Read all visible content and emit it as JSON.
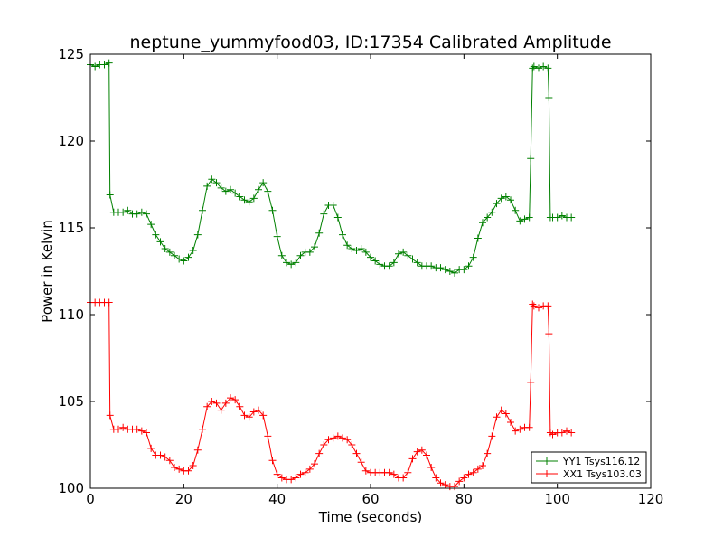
{
  "chart_data": {
    "type": "line",
    "title": "neptune_yummyfood03, ID:17354 Calibrated Amplitude",
    "xlabel": "Time (seconds)",
    "ylabel": "Power in Kelvin",
    "xlim": [
      0,
      120
    ],
    "ylim": [
      100,
      125
    ],
    "xticks": [
      "0",
      "20",
      "40",
      "60",
      "80",
      "100",
      "120"
    ],
    "yticks": [
      "100",
      "105",
      "110",
      "115",
      "120",
      "125"
    ],
    "grid": false,
    "legend_position": "bottom-right",
    "marker": "+",
    "series": [
      {
        "name": "YY1 Tsys116.12",
        "color": "#008000",
        "x": [
          0,
          1,
          2,
          3,
          4,
          4.2,
          5,
          6,
          7,
          8,
          9,
          10,
          11,
          12,
          13,
          14,
          15,
          16,
          17,
          18,
          19,
          20,
          21,
          22,
          23,
          24,
          25,
          26,
          27,
          28,
          29,
          30,
          31,
          32,
          33,
          34,
          35,
          36,
          37,
          38,
          39,
          40,
          41,
          42,
          43,
          44,
          45,
          46,
          47,
          48,
          49,
          50,
          51,
          52,
          53,
          54,
          55,
          56,
          57,
          58,
          59,
          60,
          61,
          62,
          63,
          64,
          65,
          66,
          67,
          68,
          69,
          70,
          71,
          72,
          73,
          74,
          75,
          76,
          77,
          78,
          79,
          80,
          81,
          82,
          83,
          84,
          85,
          86,
          87,
          88,
          89,
          90,
          91,
          92,
          93,
          94,
          94.3,
          94.7,
          95,
          96,
          97,
          98,
          98.2,
          98.5,
          99,
          100,
          101,
          102,
          103
        ],
        "y": [
          124.4,
          124.3,
          124.4,
          124.4,
          124.5,
          116.9,
          115.9,
          115.9,
          115.9,
          116.0,
          115.8,
          115.8,
          115.9,
          115.8,
          115.2,
          114.6,
          114.2,
          113.8,
          113.6,
          113.4,
          113.2,
          113.1,
          113.3,
          113.7,
          114.6,
          116.0,
          117.4,
          117.8,
          117.6,
          117.3,
          117.1,
          117.2,
          117.0,
          116.8,
          116.6,
          116.5,
          116.7,
          117.2,
          117.6,
          117.1,
          116.0,
          114.5,
          113.4,
          113.0,
          112.9,
          113.0,
          113.4,
          113.6,
          113.6,
          113.9,
          114.7,
          115.8,
          116.3,
          116.3,
          115.6,
          114.6,
          114.0,
          113.8,
          113.7,
          113.8,
          113.6,
          113.3,
          113.1,
          112.9,
          112.8,
          112.8,
          113.0,
          113.5,
          113.6,
          113.4,
          113.2,
          113.0,
          112.8,
          112.8,
          112.8,
          112.7,
          112.7,
          112.6,
          112.5,
          112.4,
          112.6,
          112.6,
          112.8,
          113.3,
          114.4,
          115.3,
          115.6,
          115.9,
          116.4,
          116.7,
          116.8,
          116.6,
          116.0,
          115.4,
          115.5,
          115.6,
          119.0,
          124.2,
          124.3,
          124.2,
          124.3,
          124.2,
          122.5,
          115.6,
          115.6,
          115.6,
          115.7,
          115.6,
          115.6
        ]
      },
      {
        "name": "XX1 Tsys103.03",
        "color": "#ff0000",
        "x": [
          0,
          1,
          2,
          3,
          4,
          4.2,
          5,
          6,
          7,
          8,
          9,
          10,
          11,
          12,
          13,
          14,
          15,
          16,
          17,
          18,
          19,
          20,
          21,
          22,
          23,
          24,
          25,
          26,
          27,
          28,
          29,
          30,
          31,
          32,
          33,
          34,
          35,
          36,
          37,
          38,
          39,
          40,
          41,
          42,
          43,
          44,
          45,
          46,
          47,
          48,
          49,
          50,
          51,
          52,
          53,
          54,
          55,
          56,
          57,
          58,
          59,
          60,
          61,
          62,
          63,
          64,
          65,
          66,
          67,
          68,
          69,
          70,
          71,
          72,
          73,
          74,
          75,
          76,
          77,
          78,
          79,
          80,
          81,
          82,
          83,
          84,
          85,
          86,
          87,
          88,
          89,
          90,
          91,
          92,
          93,
          94,
          94.3,
          94.7,
          95,
          96,
          97,
          98,
          98.2,
          98.5,
          99,
          100,
          101,
          102,
          103
        ],
        "y": [
          110.7,
          110.7,
          110.7,
          110.7,
          110.7,
          104.2,
          103.4,
          103.4,
          103.5,
          103.4,
          103.4,
          103.4,
          103.3,
          103.2,
          102.3,
          101.9,
          101.9,
          101.8,
          101.6,
          101.2,
          101.1,
          101.0,
          101.0,
          101.3,
          102.2,
          103.4,
          104.7,
          105.0,
          104.9,
          104.5,
          104.9,
          105.2,
          105.1,
          104.7,
          104.2,
          104.1,
          104.4,
          104.5,
          104.2,
          103.0,
          101.6,
          100.8,
          100.6,
          100.5,
          100.5,
          100.6,
          100.8,
          100.9,
          101.1,
          101.4,
          102.0,
          102.5,
          102.8,
          102.9,
          103.0,
          102.9,
          102.8,
          102.5,
          102.0,
          101.5,
          101.0,
          100.9,
          100.9,
          100.9,
          100.9,
          100.9,
          100.8,
          100.6,
          100.6,
          100.9,
          101.7,
          102.1,
          102.2,
          101.9,
          101.2,
          100.6,
          100.3,
          100.2,
          100.1,
          100.1,
          100.4,
          100.6,
          100.8,
          100.9,
          101.1,
          101.3,
          102.0,
          103.0,
          104.1,
          104.5,
          104.3,
          103.8,
          103.3,
          103.4,
          103.5,
          103.5,
          106.1,
          110.6,
          110.5,
          110.4,
          110.5,
          110.5,
          108.9,
          103.2,
          103.1,
          103.2,
          103.2,
          103.3,
          103.2
        ]
      }
    ]
  }
}
